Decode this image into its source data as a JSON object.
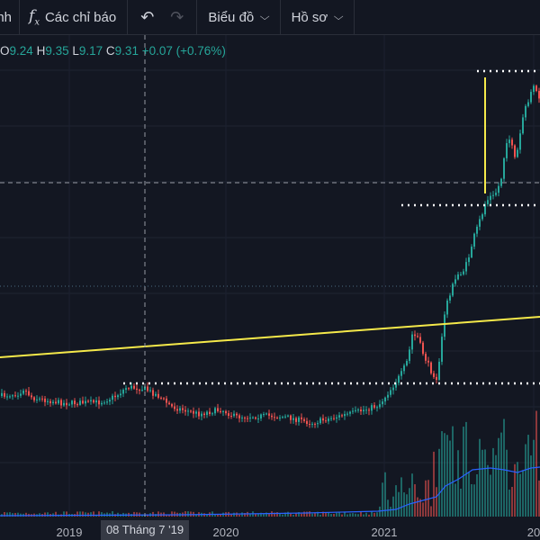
{
  "toolbar": {
    "left_partial_label": "anh",
    "indicators_label": "Các chỉ báo",
    "chart_menu_label": "Biểu đồ",
    "profile_menu_label": "Hồ sơ"
  },
  "legend": {
    "o_label": "O",
    "o_value": "9.24",
    "h_label": "H",
    "h_value": "9.35",
    "l_label": "L",
    "l_value": "9.17",
    "c_label": "C",
    "c_value": "9.31",
    "change": "+0.07",
    "change_pct": "(+0.76%)"
  },
  "x_axis": {
    "ticks": [
      "2019",
      "2020",
      "2021",
      "20"
    ],
    "crosshair_label": "08 Tháng 7 '19"
  },
  "colors": {
    "background": "#131722",
    "up": "#26a69a",
    "down": "#ef5350",
    "trendline": "#f5e94a",
    "volume_ma": "#2962ff"
  },
  "chart_data": {
    "type": "candlestick",
    "x_ticks": [
      "2019",
      "2020",
      "2021",
      "20"
    ],
    "last_bar": {
      "open": 9.24,
      "high": 9.35,
      "low": 9.17,
      "close": 9.31,
      "change": 0.07,
      "change_pct": 0.76
    }
  }
}
